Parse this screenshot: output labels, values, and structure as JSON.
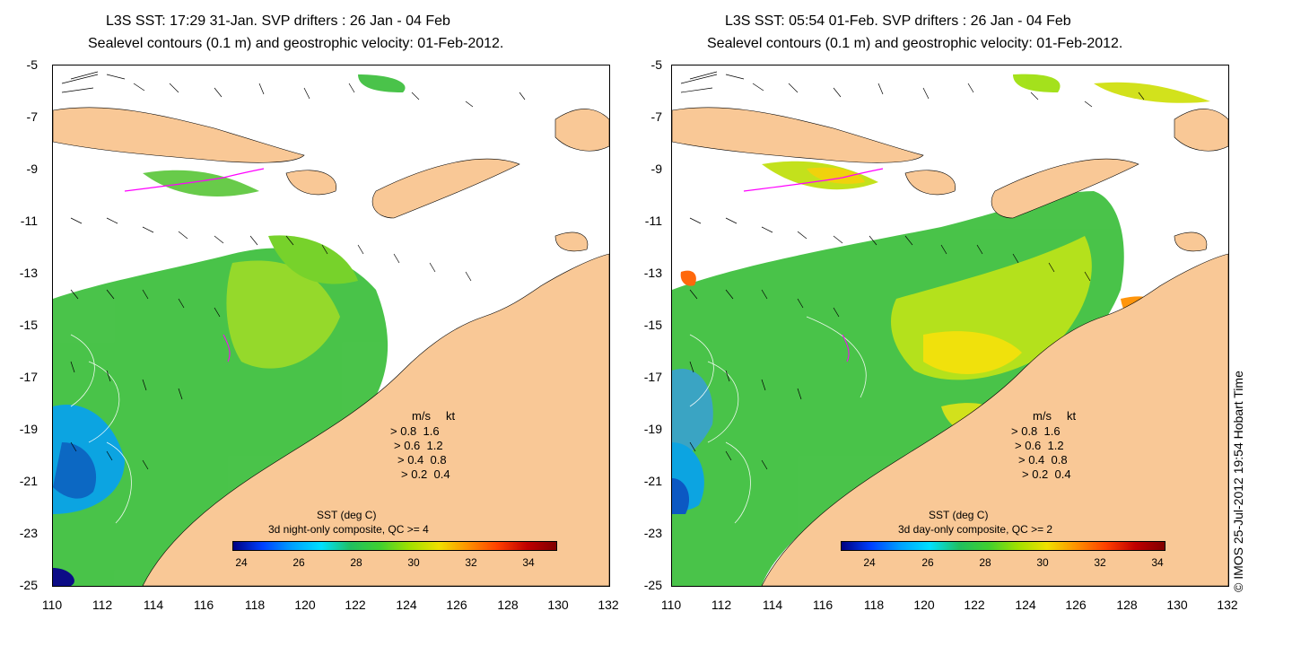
{
  "panels": [
    {
      "title_line1": "L3S SST: 17:29 31-Jan. SVP drifters : 26 Jan - 04 Feb",
      "title_line2": "Sealevel contours (0.1 m) and geostrophic velocity: 01-Feb-2012.",
      "colorbar_title_line1": "SST (deg C)",
      "colorbar_title_line2": "3d night-only composite, QC >= 4"
    },
    {
      "title_line1": "L3S SST: 05:54 01-Feb. SVP drifters : 26 Jan - 04 Feb",
      "title_line2": "Sealevel contours (0.1 m) and geostrophic velocity: 01-Feb-2012.",
      "colorbar_title_line1": "SST (deg C)",
      "colorbar_title_line2": "3d day-only composite, QC >= 2"
    }
  ],
  "y_ticks": [
    "-5",
    "-7",
    "-9",
    "-11",
    "-13",
    "-15",
    "-17",
    "-19",
    "-21",
    "-23",
    "-25"
  ],
  "x_ticks": [
    "110",
    "112",
    "114",
    "116",
    "118",
    "120",
    "122",
    "124",
    "126",
    "128",
    "130",
    "132"
  ],
  "velocity_legend": {
    "header_ms": "m/s",
    "header_kt": "kt",
    "rows": [
      {
        "ms": "0.8",
        "kt": "1.6"
      },
      {
        "ms": "0.6",
        "kt": "1.2"
      },
      {
        "ms": "0.4",
        "kt": "0.8"
      },
      {
        "ms": "0.2",
        "kt": "0.4"
      }
    ]
  },
  "colorbar_ticks": [
    "24",
    "26",
    "28",
    "30",
    "32",
    "34"
  ],
  "credit": "© IMOS 25-Jul-2012 19:54 Hobart Time",
  "colors": {
    "land": "#f9c896",
    "ocean_blank": "#ffffff",
    "drifter": "#ff00ff"
  }
}
